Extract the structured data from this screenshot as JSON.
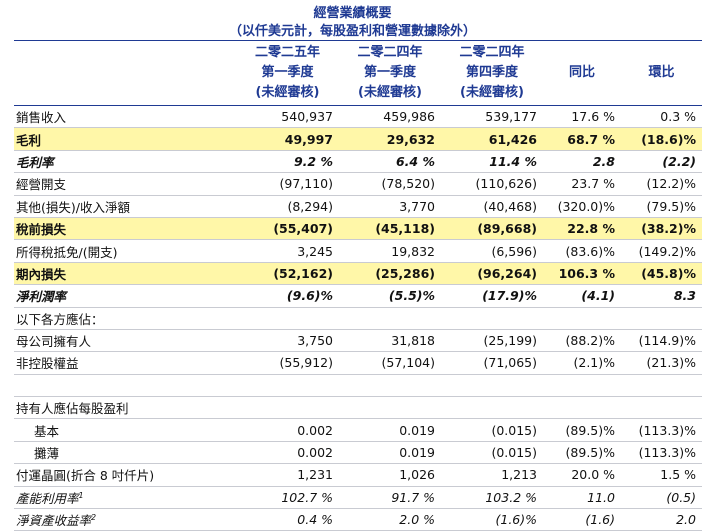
{
  "title": "經營業績概要",
  "subtitle": "（以仟美元計，每股盈利和營運數據除外）",
  "headers": [
    {
      "line1": "二零二五年",
      "line2": "第一季度",
      "line3": "(未經審核)"
    },
    {
      "line1": "二零二四年",
      "line2": "第一季度",
      "line3": "(未經審核)"
    },
    {
      "line1": "二零二四年",
      "line2": "第四季度",
      "line3": "(未經審核)"
    },
    {
      "line1": "",
      "line2": "同比",
      "line3": ""
    },
    {
      "line1": "",
      "line2": "環比",
      "line3": ""
    }
  ],
  "rows": [
    {
      "label": "銷售收入",
      "style": "normal",
      "values": [
        "540,937",
        "459,986",
        "539,177",
        "17.6 %",
        "0.3 %"
      ]
    },
    {
      "label": "毛利",
      "style": "highlight",
      "values": [
        "49,997",
        "29,632",
        "61,426",
        "68.7 %",
        "(18.6)%"
      ]
    },
    {
      "label": "毛利率",
      "style": "italic",
      "values": [
        "9.2 %",
        "6.4 %",
        "11.4 %",
        "2.8",
        "(2.2)"
      ]
    },
    {
      "label": "經營開支",
      "style": "normal",
      "values": [
        "(97,110)",
        "(78,520)",
        "(110,626)",
        "23.7 %",
        "(12.2)%"
      ]
    },
    {
      "label": "其他(損失)/收入淨額",
      "style": "normal",
      "values": [
        "(8,294)",
        "3,770",
        "(40,468)",
        "(320.0)%",
        "(79.5)%"
      ]
    },
    {
      "label": "稅前損失",
      "style": "highlight",
      "values": [
        "(55,407)",
        "(45,118)",
        "(89,668)",
        "22.8 %",
        "(38.2)%"
      ]
    },
    {
      "label": "所得稅抵免/(開支)",
      "style": "normal",
      "values": [
        "3,245",
        "19,832",
        "(6,596)",
        "(83.6)%",
        "(149.2)%"
      ]
    },
    {
      "label": "期內損失",
      "style": "highlight",
      "values": [
        "(52,162)",
        "(25,286)",
        "(96,264)",
        "106.3 %",
        "(45.8)%"
      ]
    },
    {
      "label": "淨利潤率",
      "style": "italic",
      "values": [
        "(9.6)%",
        "(5.5)%",
        "(17.9)%",
        "(4.1)",
        "8.3"
      ]
    },
    {
      "label": "以下各方應佔：",
      "style": "normal",
      "values": [
        "",
        "",
        "",
        "",
        ""
      ]
    },
    {
      "label": "母公司擁有人",
      "style": "normal",
      "values": [
        "3,750",
        "31,818",
        "(25,199)",
        "(88.2)%",
        "(114.9)%"
      ]
    },
    {
      "label": "非控股權益",
      "style": "normal",
      "values": [
        "(55,912)",
        "(57,104)",
        "(71,065)",
        "(2.1)%",
        "(21.3)%"
      ]
    },
    {
      "label": "",
      "style": "blank",
      "values": [
        "",
        "",
        "",
        "",
        ""
      ]
    },
    {
      "label": "持有人應佔每股盈利",
      "style": "normal",
      "values": [
        "",
        "",
        "",
        "",
        ""
      ]
    },
    {
      "label": "基本",
      "style": "indent",
      "values": [
        "0.002",
        "0.019",
        "(0.015)",
        "(89.5)%",
        "(113.3)%"
      ]
    },
    {
      "label": "攤薄",
      "style": "indent",
      "values": [
        "0.002",
        "0.019",
        "(0.015)",
        "(89.5)%",
        "(113.3)%"
      ]
    },
    {
      "label": "付運晶圓(折合 8 吋仟片)",
      "style": "normal",
      "values": [
        "1,231",
        "1,026",
        "1,213",
        "20.0 %",
        "1.5 %"
      ]
    },
    {
      "label": "產能利用率",
      "sup": "1",
      "style": "italicplain",
      "values": [
        "102.7 %",
        "91.7 %",
        "103.2 %",
        "11.0",
        "(0.5)"
      ]
    },
    {
      "label": "淨資產收益率",
      "sup": "2",
      "style": "italicplain",
      "values": [
        "0.4 %",
        "2.0 %",
        "(1.6)%",
        "(1.6)",
        "2.0"
      ]
    }
  ],
  "colors": {
    "accent": "#1f3a93",
    "highlight": "#fff7a8"
  }
}
